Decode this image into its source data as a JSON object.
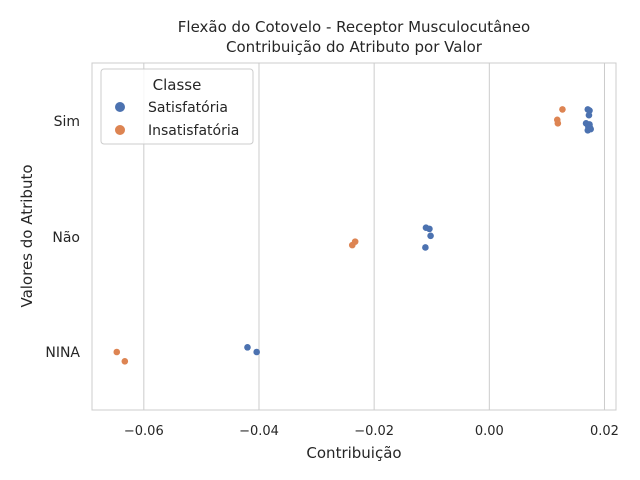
{
  "chart_data": {
    "type": "scatter",
    "title": "Flexão do Cotovelo - Receptor Musculocutâneo",
    "subtitle": "Contribuição do Atributo por Valor",
    "xlabel": "Contribuição",
    "ylabel": "Valores do Atributo",
    "xlim": [
      -0.069,
      0.022
    ],
    "xticks": [
      -0.06,
      -0.04,
      -0.02,
      0.0,
      0.02
    ],
    "xtick_labels": [
      "−0.06",
      "−0.04",
      "−0.02",
      "0.00",
      "0.02"
    ],
    "categories": [
      "Sim",
      "Não",
      "NINA"
    ],
    "grid": "vertical",
    "legend": {
      "title": "Classe",
      "position": "top-left"
    },
    "series": [
      {
        "name": "Satisfatória",
        "color": "#4c72b0",
        "points": [
          {
            "category": "Sim",
            "x": 0.0171,
            "jitter": -0.1
          },
          {
            "category": "Sim",
            "x": 0.0174,
            "jitter": -0.09
          },
          {
            "category": "Sim",
            "x": 0.0173,
            "jitter": -0.05
          },
          {
            "category": "Sim",
            "x": 0.0168,
            "jitter": 0.02
          },
          {
            "category": "Sim",
            "x": 0.0174,
            "jitter": 0.03
          },
          {
            "category": "Sim",
            "x": 0.0172,
            "jitter": 0.05
          },
          {
            "category": "Sim",
            "x": 0.0175,
            "jitter": 0.06
          },
          {
            "category": "Sim",
            "x": 0.0171,
            "jitter": 0.08
          },
          {
            "category": "Sim",
            "x": 0.0176,
            "jitter": 0.07
          },
          {
            "category": "Não",
            "x": -0.011,
            "jitter": -0.08
          },
          {
            "category": "Não",
            "x": -0.0104,
            "jitter": -0.07
          },
          {
            "category": "Não",
            "x": -0.0102,
            "jitter": -0.01
          },
          {
            "category": "Não",
            "x": -0.0111,
            "jitter": 0.09
          },
          {
            "category": "NINA",
            "x": -0.042,
            "jitter": -0.04
          },
          {
            "category": "NINA",
            "x": -0.0404,
            "jitter": 0.0
          }
        ]
      },
      {
        "name": "Insatisfatória",
        "color": "#dd8452",
        "points": [
          {
            "category": "Sim",
            "x": 0.0127,
            "jitter": -0.1
          },
          {
            "category": "Sim",
            "x": 0.0118,
            "jitter": -0.01
          },
          {
            "category": "Sim",
            "x": 0.0119,
            "jitter": 0.02
          },
          {
            "category": "Não",
            "x": -0.0233,
            "jitter": 0.04
          },
          {
            "category": "Não",
            "x": -0.0238,
            "jitter": 0.07
          },
          {
            "category": "NINA",
            "x": -0.0647,
            "jitter": 0.0
          },
          {
            "category": "NINA",
            "x": -0.0633,
            "jitter": 0.08
          }
        ]
      }
    ]
  }
}
